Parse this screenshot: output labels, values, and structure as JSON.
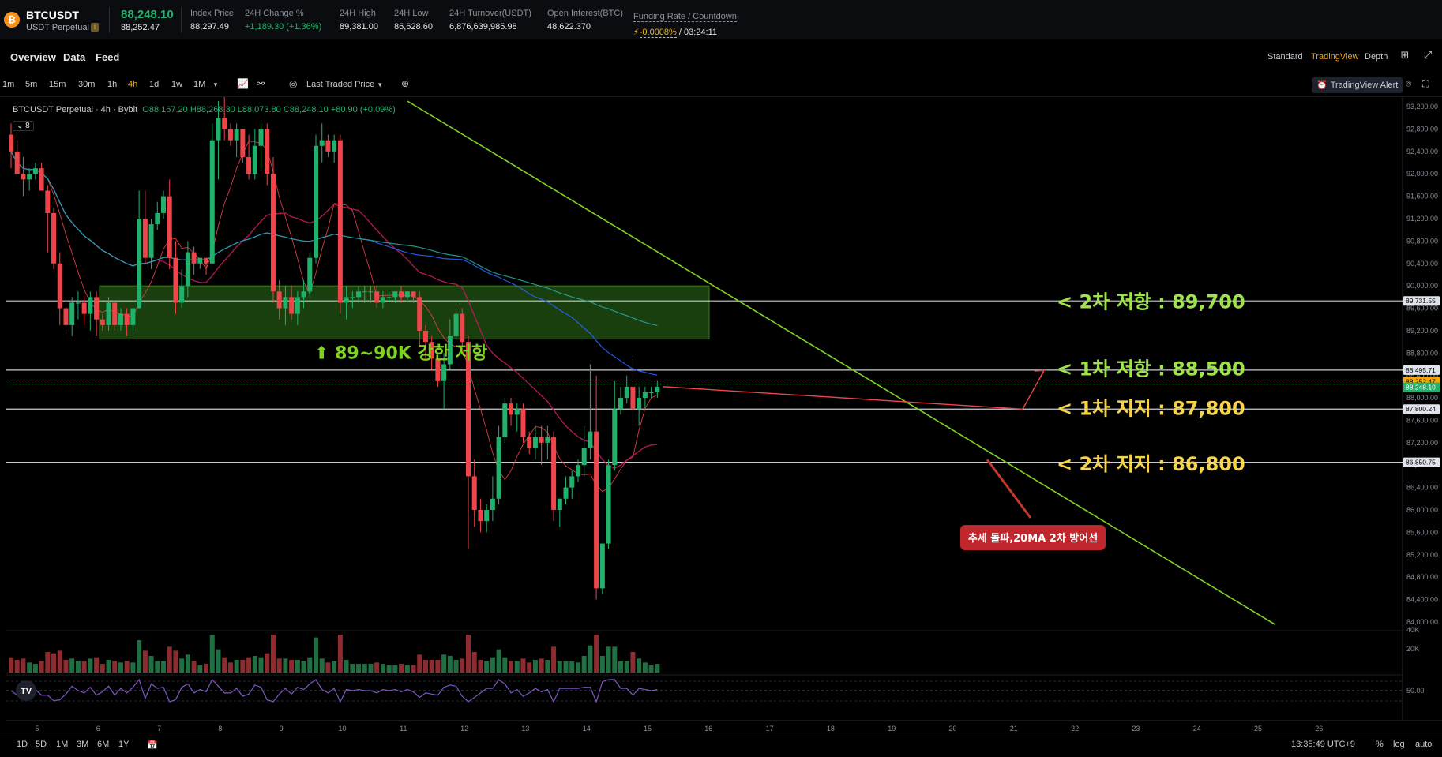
{
  "ticker": {
    "logo_glyph": "₿",
    "symbol": "BTCUSDT",
    "sub": "USDT Perpetual",
    "info_glyph": "i",
    "last_price": "88,248.10",
    "mark_price": "88,252.47",
    "stats": [
      {
        "label": "Index Price",
        "value": "88,297.49"
      },
      {
        "label": "24H Change %",
        "value": "+1,189.30 (+1.36%)"
      },
      {
        "label": "24H High",
        "value": "89,381.00"
      },
      {
        "label": "24H Low",
        "value": "86,628.60"
      },
      {
        "label": "24H Turnover(USDT)",
        "value": "6,876,639,985.98"
      },
      {
        "label": "Open Interest(BTC)",
        "value": "48,622.370"
      }
    ],
    "funding_label": "Funding Rate / Countdown",
    "funding_rate": "-0.0008%",
    "funding_countdown": "/ 03:24:11"
  },
  "nav": {
    "tabs": [
      "Overview",
      "Data",
      "Feed"
    ],
    "views": [
      "Standard",
      "TradingView",
      "Depth"
    ],
    "active_view": "TradingView"
  },
  "toolbar": {
    "timeframes": [
      "1m",
      "5m",
      "15m",
      "30m",
      "1h",
      "4h",
      "1d",
      "1w",
      "1M"
    ],
    "active_timeframe": "4h",
    "price_source": "Last Traded Price",
    "alert_label": "TradingView Alert"
  },
  "legend": {
    "title": "BTCUSDT Perpetual · 4h · Bybit",
    "ohlc": "O88,167.20 H88,268.30 L88,073.80 C88,248.10 +80.90 (+0.09%)",
    "indicator_count": "8"
  },
  "chart_data": {
    "type": "candlestick",
    "symbol": "BTCUSDT Perpetual",
    "interval": "4h",
    "price_axis_ticks": [
      "93,200.00",
      "92,800.00",
      "92,400.00",
      "92,000.00",
      "91,600.00",
      "91,200.00",
      "90,800.00",
      "90,400.00",
      "90,000.00",
      "89,600.00",
      "89,200.00",
      "88,800.00",
      "88,400.00",
      "88,000.00",
      "87,600.00",
      "87,200.00",
      "86,800.00",
      "86,400.00",
      "86,000.00",
      "85,600.00",
      "85,200.00",
      "84,800.00",
      "84,400.00",
      "84,000.00"
    ],
    "price_axis_values": [
      93200,
      92800,
      92400,
      92000,
      91600,
      91200,
      90800,
      90400,
      90000,
      89600,
      89200,
      88800,
      88400,
      88000,
      87600,
      87200,
      86800,
      86400,
      86000,
      85600,
      85200,
      84800,
      84400,
      84000
    ],
    "date_axis": [
      "5",
      "6",
      "7",
      "8",
      "9",
      "10",
      "11",
      "12",
      "13",
      "14",
      "15",
      "16",
      "17",
      "18",
      "19",
      "20",
      "21",
      "22",
      "23",
      "24",
      "25",
      "26"
    ],
    "ylim": [
      83900,
      93300
    ],
    "candles": [
      [
        92700,
        92900,
        92100,
        92400
      ],
      [
        92400,
        92600,
        92000,
        92000
      ],
      [
        92000,
        92300,
        91600,
        91900
      ],
      [
        91900,
        92100,
        91700,
        92000
      ],
      [
        92000,
        92200,
        91900,
        92100
      ],
      [
        92100,
        92200,
        91700,
        91700
      ],
      [
        91700,
        91800,
        90600,
        91300
      ],
      [
        91300,
        91400,
        90300,
        90400
      ],
      [
        90400,
        90600,
        89300,
        89600
      ],
      [
        89600,
        89800,
        89200,
        89300
      ],
      [
        89300,
        89800,
        89100,
        89700
      ],
      [
        89700,
        89900,
        89400,
        89700
      ],
      [
        89700,
        89800,
        89300,
        89500
      ],
      [
        89500,
        89900,
        89200,
        89800
      ],
      [
        89800,
        89900,
        89100,
        89400
      ],
      [
        89400,
        89500,
        89200,
        89300
      ],
      [
        89300,
        89800,
        89200,
        89700
      ],
      [
        89700,
        89700,
        89200,
        89300
      ],
      [
        89300,
        89600,
        89200,
        89500
      ],
      [
        89500,
        89600,
        89100,
        89300
      ],
      [
        89300,
        89600,
        89200,
        89600
      ],
      [
        89600,
        91700,
        89600,
        91200
      ],
      [
        91200,
        91700,
        90400,
        90500
      ],
      [
        90500,
        91200,
        90300,
        91100
      ],
      [
        91100,
        91500,
        91000,
        91300
      ],
      [
        91300,
        91700,
        91200,
        91600
      ],
      [
        91600,
        91900,
        90300,
        90500
      ],
      [
        90500,
        90800,
        89500,
        89700
      ],
      [
        89700,
        90300,
        89600,
        90000
      ],
      [
        90000,
        90800,
        89800,
        90600
      ],
      [
        90600,
        90700,
        90200,
        90400
      ],
      [
        90400,
        90500,
        90300,
        90500
      ],
      [
        90500,
        90500,
        90200,
        90400
      ],
      [
        90400,
        92900,
        90400,
        92600
      ],
      [
        92600,
        93300,
        91900,
        93000
      ],
      [
        93000,
        93400,
        92600,
        92800
      ],
      [
        92800,
        92900,
        92500,
        92600
      ],
      [
        92600,
        92900,
        92300,
        92800
      ],
      [
        92800,
        92800,
        92200,
        92300
      ],
      [
        92300,
        92700,
        91900,
        92000
      ],
      [
        92000,
        92800,
        91900,
        92500
      ],
      [
        92500,
        92900,
        92100,
        92800
      ],
      [
        92800,
        92900,
        91800,
        92000
      ],
      [
        92000,
        92300,
        89700,
        89900
      ],
      [
        89900,
        90100,
        89400,
        89600
      ],
      [
        89600,
        90000,
        89300,
        89800
      ],
      [
        89800,
        90000,
        89400,
        89500
      ],
      [
        89500,
        89900,
        89300,
        89800
      ],
      [
        89800,
        90100,
        89600,
        89900
      ],
      [
        89900,
        90600,
        89800,
        90500
      ],
      [
        90500,
        92700,
        90400,
        92500
      ],
      [
        92500,
        92900,
        92200,
        92600
      ],
      [
        92600,
        92700,
        92300,
        92400
      ],
      [
        92400,
        92700,
        92200,
        92600
      ],
      [
        92600,
        92700,
        89500,
        89700
      ],
      [
        89700,
        90000,
        89400,
        89800
      ],
      [
        89800,
        89900,
        89600,
        89800
      ],
      [
        89800,
        90000,
        89700,
        89900
      ],
      [
        89900,
        90000,
        89700,
        89900
      ],
      [
        89900,
        90000,
        89700,
        89900
      ],
      [
        89900,
        90000,
        89600,
        89700
      ],
      [
        89700,
        89900,
        89600,
        89800
      ],
      [
        89800,
        89900,
        89700,
        89800
      ],
      [
        89800,
        89900,
        89700,
        89900
      ],
      [
        89900,
        90000,
        89700,
        89800
      ],
      [
        89800,
        89900,
        89700,
        89900
      ],
      [
        89900,
        89900,
        89700,
        89800
      ],
      [
        89800,
        89900,
        88900,
        89200
      ],
      [
        89200,
        89300,
        88700,
        89000
      ],
      [
        89000,
        89100,
        88500,
        88700
      ],
      [
        88700,
        88800,
        88200,
        88300
      ],
      [
        88300,
        88800,
        87800,
        88600
      ],
      [
        88600,
        89400,
        88500,
        89100
      ],
      [
        89100,
        89600,
        89000,
        89500
      ],
      [
        89500,
        89600,
        88900,
        89000
      ],
      [
        89000,
        89100,
        85300,
        86600
      ],
      [
        86600,
        86900,
        85700,
        86000
      ],
      [
        86000,
        86200,
        85600,
        85800
      ],
      [
        85800,
        86100,
        85600,
        86000
      ],
      [
        86000,
        86600,
        85800,
        86200
      ],
      [
        86200,
        87500,
        86100,
        87300
      ],
      [
        87300,
        88000,
        87200,
        87900
      ],
      [
        87900,
        88000,
        87500,
        87700
      ],
      [
        87700,
        87900,
        87400,
        87800
      ],
      [
        87800,
        87900,
        87200,
        87300
      ],
      [
        87300,
        87400,
        87000,
        87100
      ],
      [
        87100,
        87500,
        86900,
        87300
      ],
      [
        87300,
        87500,
        86800,
        87200
      ],
      [
        87200,
        87500,
        86900,
        87300
      ],
      [
        87300,
        87400,
        85800,
        86000
      ],
      [
        86000,
        86200,
        85700,
        86200
      ],
      [
        86200,
        86600,
        86100,
        86400
      ],
      [
        86400,
        86700,
        86200,
        86600
      ],
      [
        86600,
        86900,
        86500,
        86800
      ],
      [
        86800,
        87500,
        86600,
        87100
      ],
      [
        87100,
        88600,
        86900,
        87400
      ],
      [
        87400,
        88400,
        84400,
        84600
      ],
      [
        84600,
        85400,
        84500,
        85400
      ],
      [
        85400,
        86900,
        85300,
        86800
      ],
      [
        86800,
        88300,
        86700,
        87800
      ],
      [
        87800,
        88200,
        87700,
        88000
      ],
      [
        88000,
        88400,
        87900,
        88200
      ],
      [
        88200,
        88700,
        87500,
        87800
      ],
      [
        87800,
        88200,
        87500,
        88000
      ],
      [
        88000,
        88200,
        87800,
        88100
      ],
      [
        88100,
        88200,
        88000,
        88100
      ],
      [
        88100,
        88300,
        88000,
        88200
      ]
    ],
    "annotations": [
      {
        "text": "< 2차 저항 : 89,700",
        "price": 89700,
        "color": "#9fe34a"
      },
      {
        "text": "< 1차 저항 : 88,500",
        "price": 88500,
        "color": "#9fe34a"
      },
      {
        "text": "< 1차 지지 : 87,800",
        "price": 87800,
        "color": "#f5d34a"
      },
      {
        "text": "< 2차 지지 : 86,800",
        "price": 86800,
        "color": "#f5d34a"
      }
    ],
    "horizontal_levels": [
      89731.55,
      88495.71,
      87800.24,
      86850.75
    ],
    "zone": {
      "label": "89~90K 강한 저항",
      "from": 89050,
      "to": 90000
    },
    "callout": "추세 돌파,20MA 2차 방어선",
    "price_tags": [
      {
        "text": "89,731.55",
        "price": 89731.55,
        "bg": "#e0e3eb",
        "fg": "#000"
      },
      {
        "text": "88,495.71",
        "price": 88495.71,
        "bg": "#e0e3eb",
        "fg": "#000"
      },
      {
        "text": "88,252.47",
        "price": 88290,
        "bg": "#f7a600",
        "fg": "#000"
      },
      {
        "text": "88,248.10",
        "price": 88190,
        "bg": "#20b26c",
        "fg": "#fff"
      },
      {
        "text": "87,800.24",
        "price": 87800.24,
        "bg": "#e0e3eb",
        "fg": "#000"
      },
      {
        "text": "86,850.75",
        "price": 86850.75,
        "bg": "#e0e3eb",
        "fg": "#000"
      }
    ],
    "volume_axis": [
      "40K",
      "20K"
    ],
    "rsi_axis": "50.00",
    "colors": {
      "up": "#20b26c",
      "down": "#ef454a",
      "trend": "#7ed321"
    }
  },
  "bottom": {
    "ranges": [
      "1D",
      "5D",
      "1M",
      "3M",
      "6M",
      "1Y"
    ],
    "clock": "13:35:49 UTC+9",
    "options": [
      "%",
      "log",
      "auto"
    ]
  }
}
